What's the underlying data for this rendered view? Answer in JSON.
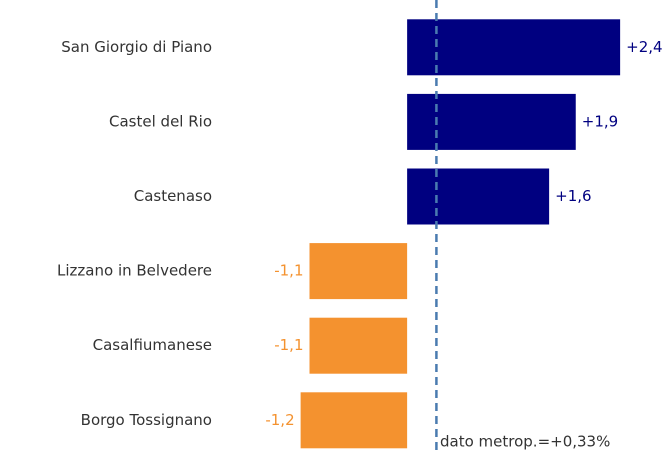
{
  "chart_data": {
    "type": "bar",
    "orientation": "horizontal",
    "categories": [
      "San Giorgio di Piano",
      "Castel del Rio",
      "Castenaso",
      "Lizzano in Belvedere",
      "Casalfiumanese",
      "Borgo Tossignano"
    ],
    "values": [
      2.4,
      1.9,
      1.6,
      -1.1,
      -1.1,
      -1.2
    ],
    "value_labels": [
      "+2,4",
      "+1,9",
      "+1,6",
      "-1,1",
      "-1,1",
      "-1,2"
    ],
    "positive_color": "#000080",
    "negative_color": "#f4922f",
    "xlim": [
      -1.5,
      2.5
    ],
    "reference_line": {
      "value": 0.33,
      "label": "dato metrop.=+0,33%",
      "color": "#4a7bb0"
    }
  }
}
